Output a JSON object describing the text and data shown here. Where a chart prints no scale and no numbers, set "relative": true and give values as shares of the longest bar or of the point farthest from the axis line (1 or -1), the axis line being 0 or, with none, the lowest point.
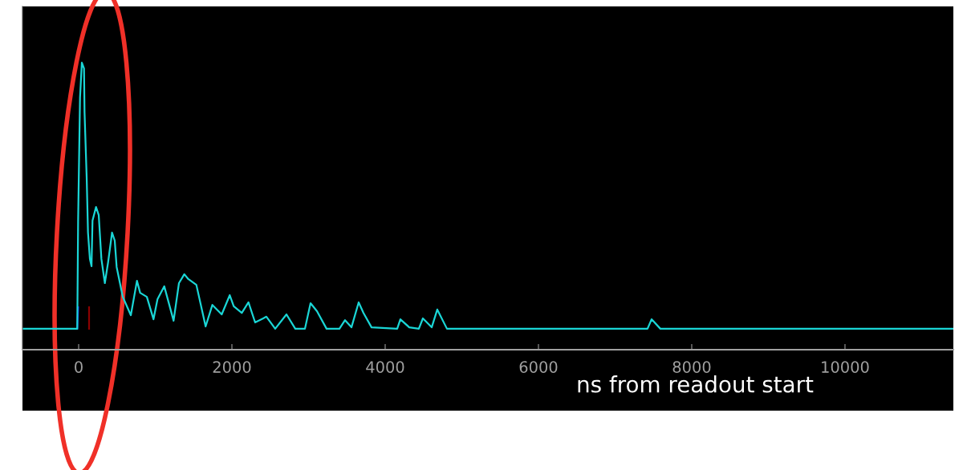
{
  "chart_data": {
    "type": "line",
    "relative": true,
    "xlabel": "ns from readout start",
    "xlim": [
      -733,
      11414
    ],
    "xticks": [
      0,
      2000,
      4000,
      6000,
      8000,
      10000
    ],
    "grid": false,
    "legend": false,
    "marker": "none",
    "line_style": "solid",
    "series": [
      {
        "color": "#2020ff",
        "x": [
          -18,
          -7
        ],
        "values": [
          0.073,
          0.148
        ]
      },
      {
        "color": "#8b0000",
        "x": [
          136,
          136
        ],
        "values": [
          0.073,
          0.148
        ]
      },
      {
        "color": "#1ad6d6",
        "x": [
          -733,
          -18,
          -7,
          18,
          42,
          70,
          77,
          105,
          122,
          147,
          168,
          181,
          227,
          262,
          297,
          342,
          384,
          436,
          471,
          496,
          576,
          681,
          761,
          803,
          890,
          977,
          1029,
          1117,
          1239,
          1309,
          1379,
          1431,
          1536,
          1657,
          1745,
          1867,
          1972,
          2024,
          2129,
          2216,
          2303,
          2408,
          2450,
          2565,
          2712,
          2827,
          2953,
          3026,
          3110,
          3235,
          3403,
          3476,
          3560,
          3654,
          3717,
          3822,
          4157,
          4198,
          4314,
          4439,
          4492,
          4607,
          4680,
          4806,
          7423,
          7476,
          7591,
          11414
        ],
        "values": [
          0.073,
          0.073,
          0.445,
          0.878,
          1.0,
          0.98,
          0.827,
          0.599,
          0.408,
          0.316,
          0.291,
          0.45,
          0.497,
          0.469,
          0.316,
          0.232,
          0.304,
          0.408,
          0.38,
          0.288,
          0.184,
          0.12,
          0.24,
          0.198,
          0.184,
          0.106,
          0.176,
          0.221,
          0.101,
          0.232,
          0.263,
          0.246,
          0.226,
          0.081,
          0.156,
          0.123,
          0.19,
          0.151,
          0.128,
          0.165,
          0.095,
          0.109,
          0.115,
          0.073,
          0.123,
          0.073,
          0.073,
          0.162,
          0.134,
          0.073,
          0.073,
          0.103,
          0.078,
          0.165,
          0.128,
          0.078,
          0.073,
          0.106,
          0.078,
          0.073,
          0.109,
          0.078,
          0.14,
          0.073,
          0.073,
          0.106,
          0.073,
          0.073
        ]
      }
    ]
  }
}
